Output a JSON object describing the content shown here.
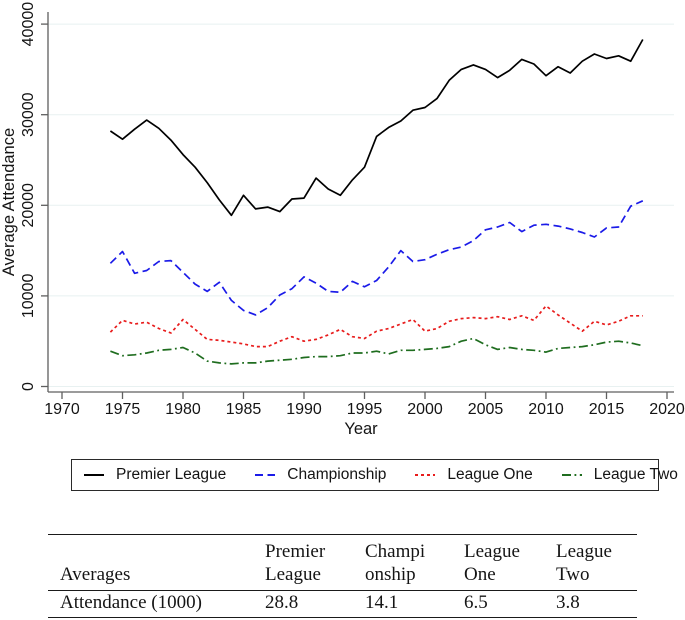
{
  "figure": {
    "x_axis_label": "Year",
    "y_axis_label": "Average Attendance",
    "y_ticks": [
      0,
      10000,
      20000,
      30000,
      40000
    ],
    "x_ticks": [
      1970,
      1975,
      1980,
      1985,
      1990,
      1995,
      2000,
      2005,
      2010,
      2015,
      2020
    ],
    "background": "#ffffff",
    "gridline_color": "#e8f1f1",
    "axis_color": "#5f5f5f",
    "text_color": "#141414"
  },
  "chart_data": {
    "type": "line",
    "title": "",
    "xlabel": "Year",
    "ylabel": "Average Attendance",
    "xlim": [
      1970,
      2020
    ],
    "ylim": [
      0,
      40000
    ],
    "grid": "horizontal",
    "legend_position": "bottom-box",
    "units": "attendance (values given in thousands)",
    "x": [
      1974,
      1975,
      1976,
      1977,
      1978,
      1979,
      1980,
      1981,
      1982,
      1983,
      1984,
      1985,
      1986,
      1987,
      1988,
      1989,
      1990,
      1991,
      1992,
      1993,
      1994,
      1995,
      1996,
      1997,
      1998,
      1999,
      2000,
      2001,
      2002,
      2003,
      2004,
      2005,
      2006,
      2007,
      2008,
      2009,
      2010,
      2011,
      2012,
      2013,
      2014,
      2015,
      2016,
      2017,
      2018
    ],
    "series": [
      {
        "name": "Premier League",
        "color": "#000000",
        "line_style": "solid",
        "values_thousands": [
          28.2,
          27.3,
          28.4,
          29.4,
          28.5,
          27.2,
          25.6,
          24.2,
          22.5,
          20.6,
          18.9,
          21.1,
          19.6,
          19.8,
          19.3,
          20.7,
          20.8,
          23.0,
          21.8,
          21.1,
          22.8,
          24.2,
          27.6,
          28.6,
          29.3,
          30.5,
          30.8,
          31.8,
          33.8,
          35.0,
          35.5,
          35.0,
          34.1,
          34.9,
          36.1,
          35.6,
          34.3,
          35.3,
          34.6,
          35.9,
          36.7,
          36.2,
          36.5,
          35.9,
          38.3
        ]
      },
      {
        "name": "Championship",
        "color": "#1b1be8",
        "line_style": "dashed",
        "values_thousands": [
          13.6,
          14.9,
          12.5,
          12.8,
          13.8,
          13.9,
          12.6,
          11.3,
          10.5,
          11.5,
          9.5,
          8.4,
          7.9,
          8.7,
          10.1,
          10.8,
          12.1,
          11.4,
          10.5,
          10.4,
          11.6,
          11.0,
          11.7,
          13.2,
          15.0,
          13.8,
          14.0,
          14.6,
          15.1,
          15.4,
          16.1,
          17.3,
          17.6,
          18.1,
          17.1,
          17.8,
          17.9,
          17.7,
          17.4,
          17.0,
          16.5,
          17.5,
          17.6,
          19.9,
          20.5
        ]
      },
      {
        "name": "League One",
        "color": "#e81c1c",
        "line_style": "short-dash",
        "values_thousands": [
          6.0,
          7.3,
          6.9,
          7.1,
          6.4,
          5.9,
          7.4,
          6.3,
          5.2,
          5.1,
          4.9,
          4.7,
          4.4,
          4.4,
          5.0,
          5.5,
          5.0,
          5.2,
          5.7,
          6.3,
          5.5,
          5.3,
          6.1,
          6.4,
          6.9,
          7.4,
          6.1,
          6.4,
          7.2,
          7.5,
          7.6,
          7.5,
          7.7,
          7.4,
          7.8,
          7.3,
          8.9,
          7.9,
          7.0,
          6.1,
          7.2,
          6.8,
          7.2,
          7.8,
          7.8
        ]
      },
      {
        "name": "League Two",
        "color": "#1f6d1f",
        "line_style": "dash-dot",
        "values_thousands": [
          3.9,
          3.4,
          3.5,
          3.7,
          4.0,
          4.1,
          4.3,
          3.7,
          2.8,
          2.6,
          2.5,
          2.6,
          2.6,
          2.8,
          2.9,
          3.0,
          3.2,
          3.3,
          3.3,
          3.4,
          3.7,
          3.7,
          3.9,
          3.6,
          4.0,
          4.0,
          4.1,
          4.2,
          4.4,
          5.0,
          5.3,
          4.6,
          4.1,
          4.3,
          4.1,
          4.0,
          3.8,
          4.2,
          4.3,
          4.4,
          4.6,
          4.9,
          5.0,
          4.8,
          4.5
        ]
      }
    ]
  },
  "legend": {
    "items": [
      {
        "label": "Premier League"
      },
      {
        "label": "Championship"
      },
      {
        "label": "League One"
      },
      {
        "label": "League Two"
      }
    ]
  },
  "table": {
    "row_header_title": "Averages",
    "col_headers": [
      {
        "line1": "Premier",
        "line2": "League"
      },
      {
        "line1": "Champi",
        "line2": "onship"
      },
      {
        "line1": "League",
        "line2": "One"
      },
      {
        "line1": "League",
        "line2": "Two"
      }
    ],
    "rows": [
      {
        "label": "Attendance (1000)",
        "values": [
          "28.8",
          "14.1",
          "6.5",
          "3.8"
        ]
      }
    ]
  }
}
